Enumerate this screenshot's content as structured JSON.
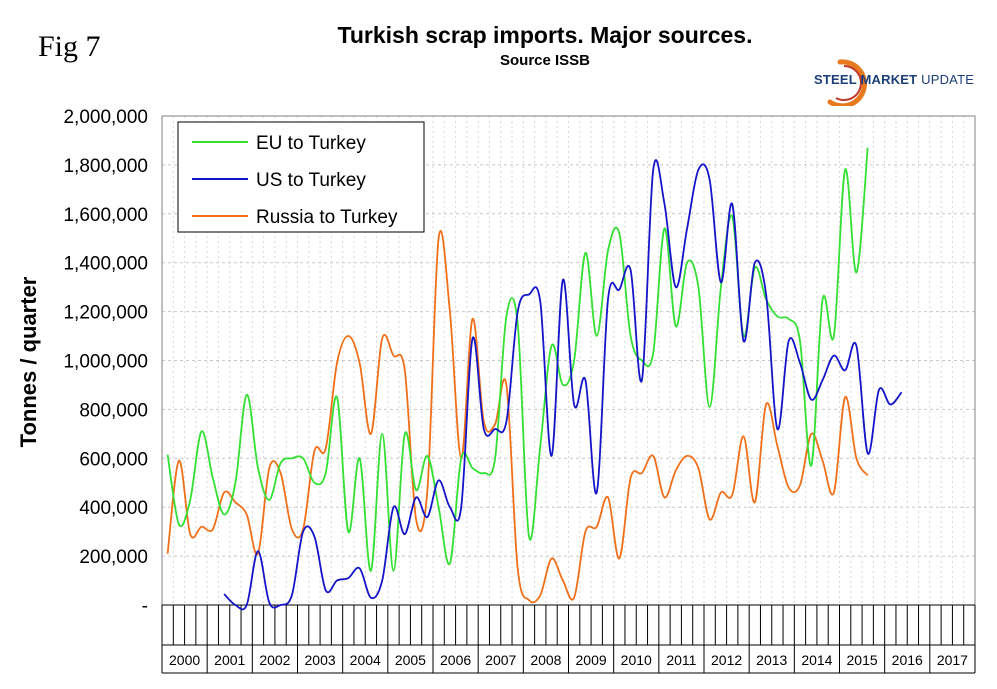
{
  "figure_label": "Fig 7",
  "logo": {
    "word1": "STEEL",
    "word2": "MARKET",
    "word3": "UPDATE",
    "accent": "#e8791f",
    "brand": "#1c3f7a"
  },
  "chart_data": {
    "type": "line",
    "title": "Turkish scrap imports. Major sources.",
    "subtitle": "Source ISSB",
    "xlabel": "",
    "ylabel": "Tonnes / quarter",
    "ylim": [
      0,
      2000000
    ],
    "y_ticks": [
      0,
      200000,
      400000,
      600000,
      800000,
      1000000,
      1200000,
      1400000,
      1600000,
      1800000,
      2000000
    ],
    "y_tick_labels": [
      "-",
      "200,000",
      "400,000",
      "600,000",
      "800,000",
      "1,000,000",
      "1,200,000",
      "1,400,000",
      "1,600,000",
      "1,800,000",
      "2,000,000"
    ],
    "years": [
      "2000",
      "2001",
      "2002",
      "2003",
      "2004",
      "2005",
      "2006",
      "2007",
      "2008",
      "2009",
      "2010",
      "2011",
      "2012",
      "2013",
      "2014",
      "2015",
      "2016",
      "2017"
    ],
    "quarters_per_year": 4,
    "grid": true,
    "legend_position": "top-left",
    "series": [
      {
        "name": "EU to Turkey",
        "color": "#33e033",
        "values": [
          615000,
          330000,
          430000,
          710000,
          520000,
          370000,
          500000,
          860000,
          560000,
          430000,
          580000,
          600000,
          600000,
          500000,
          540000,
          850000,
          300000,
          600000,
          140000,
          700000,
          140000,
          700000,
          470000,
          610000,
          400000,
          170000,
          600000,
          560000,
          540000,
          600000,
          1180000,
          1150000,
          280000,
          650000,
          1060000,
          900000,
          1000000,
          1440000,
          1100000,
          1450000,
          1520000,
          1100000,
          1000000,
          1030000,
          1540000,
          1140000,
          1400000,
          1300000,
          810000,
          1300000,
          1590000,
          1100000,
          1380000,
          1250000,
          1180000,
          1170000,
          1080000,
          570000,
          1250000,
          1100000,
          1780000,
          1360000,
          1870000
        ]
      },
      {
        "name": "US to Turkey",
        "color": "#1414c8",
        "start_index": 5,
        "values": [
          45000,
          0,
          0,
          220000,
          10000,
          0,
          40000,
          300000,
          280000,
          60000,
          100000,
          110000,
          150000,
          30000,
          100000,
          400000,
          290000,
          440000,
          360000,
          510000,
          400000,
          400000,
          1090000,
          720000,
          720000,
          750000,
          1200000,
          1270000,
          1240000,
          610000,
          1330000,
          820000,
          920000,
          460000,
          1250000,
          1290000,
          1370000,
          920000,
          1780000,
          1640000,
          1300000,
          1540000,
          1780000,
          1740000,
          1320000,
          1640000,
          1080000,
          1400000,
          1270000,
          720000,
          1080000,
          990000,
          840000,
          920000,
          1020000,
          960000,
          1060000,
          620000,
          880000,
          820000,
          870000
        ]
      },
      {
        "name": "Russia to Turkey",
        "color": "#f0701a",
        "values": [
          210000,
          590000,
          290000,
          320000,
          310000,
          460000,
          420000,
          370000,
          210000,
          560000,
          540000,
          310000,
          310000,
          630000,
          640000,
          990000,
          1100000,
          990000,
          700000,
          1090000,
          1020000,
          960000,
          350000,
          470000,
          1500000,
          1200000,
          600000,
          1170000,
          750000,
          740000,
          900000,
          150000,
          20000,
          40000,
          190000,
          100000,
          30000,
          300000,
          320000,
          440000,
          190000,
          520000,
          540000,
          610000,
          440000,
          550000,
          610000,
          560000,
          350000,
          460000,
          450000,
          690000,
          420000,
          820000,
          650000,
          480000,
          490000,
          700000,
          590000,
          460000,
          850000,
          600000,
          530000
        ]
      }
    ]
  }
}
